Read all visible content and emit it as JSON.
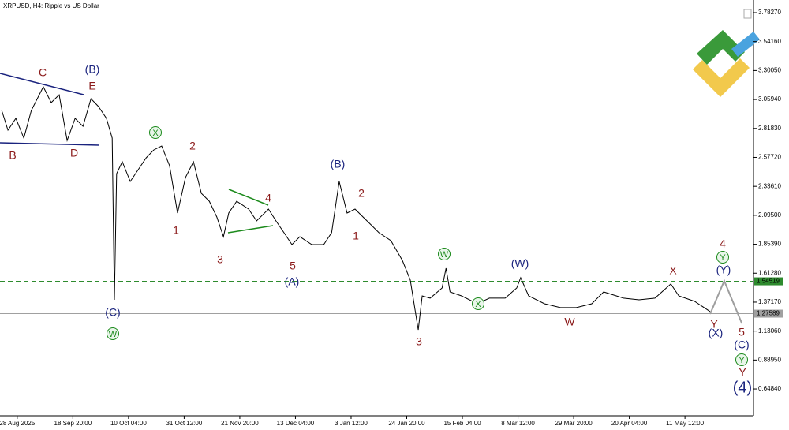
{
  "chart_data": {
    "type": "line",
    "title": "XRPUSD, H4:  Ripple vs US Dollar",
    "xlim": [
      0,
      1708
    ],
    "xticks": [
      {
        "value": 39,
        "label": "28 Aug 2025"
      },
      {
        "value": 165,
        "label": "18 Sep 20:00"
      },
      {
        "value": 291,
        "label": "10 Oct 04:00"
      },
      {
        "value": 417,
        "label": "31 Oct 12:00"
      },
      {
        "value": 543,
        "label": "21 Nov 20:00"
      },
      {
        "value": 669,
        "label": "13 Dec 04:00"
      },
      {
        "value": 795,
        "label": "3 Jan 12:00"
      },
      {
        "value": 921,
        "label": "24 Jan 20:00"
      },
      {
        "value": 1047,
        "label": "15 Feb 04:00"
      },
      {
        "value": 1173,
        "label": "8 Mar 12:00"
      },
      {
        "value": 1299,
        "label": "29 Mar 20:00"
      },
      {
        "value": 1425,
        "label": "20 Apr 04:00"
      },
      {
        "value": 1551,
        "label": "11 May 12:00"
      }
    ],
    "ylim": [
      0.4253,
      3.8747
    ],
    "yticks": [
      {
        "value": 3.7827,
        "label": "3.78270"
      },
      {
        "value": 3.5416,
        "label": "3.54160"
      },
      {
        "value": 3.3005,
        "label": "3.30050"
      },
      {
        "value": 3.0594,
        "label": "3.05940"
      },
      {
        "value": 2.8183,
        "label": "2.81830"
      },
      {
        "value": 2.5772,
        "label": "2.57720"
      },
      {
        "value": 2.3361,
        "label": "2.33610"
      },
      {
        "value": 2.095,
        "label": "2.09500"
      },
      {
        "value": 1.8539,
        "label": "1.85390"
      },
      {
        "value": 1.6128,
        "label": "1.61280"
      },
      {
        "value": 1.3717,
        "label": "1.37170"
      },
      {
        "value": 1.1306,
        "label": "1.13060"
      },
      {
        "value": 0.8895,
        "label": "0.88950"
      },
      {
        "value": 0.6484,
        "label": "0.64840"
      }
    ],
    "series": [
      {
        "color": "#000000",
        "x": [
          4,
          18,
          36,
          54,
          71,
          98,
          116,
          134,
          152,
          170,
          188,
          206,
          223,
          241,
          254,
          259,
          264,
          277,
          295,
          313,
          331,
          348,
          366,
          384,
          402,
          420,
          438,
          456,
          474,
          491,
          506,
          518,
          536,
          563,
          581,
          608,
          625,
          643,
          661,
          679,
          706,
          733,
          751,
          768,
          786,
          804,
          822,
          840,
          858,
          885,
          911,
          929,
          947,
          956,
          974,
          1001,
          1010,
          1019,
          1045,
          1081,
          1108,
          1144,
          1170,
          1179,
          1197,
          1233,
          1269,
          1305,
          1340,
          1367,
          1412,
          1447,
          1483,
          1519,
          1537,
          1573,
          1608
        ],
        "values": [
          2.968,
          2.804,
          2.902,
          2.738,
          2.968,
          3.165,
          3.034,
          3.099,
          2.718,
          2.902,
          2.836,
          3.066,
          3.001,
          2.902,
          2.738,
          1.391,
          2.442,
          2.541,
          2.377,
          2.475,
          2.574,
          2.639,
          2.672,
          2.508,
          2.114,
          2.41,
          2.541,
          2.278,
          2.212,
          2.081,
          1.917,
          2.114,
          2.212,
          2.147,
          2.048,
          2.147,
          2.048,
          1.95,
          1.851,
          1.917,
          1.851,
          1.851,
          1.95,
          2.377,
          2.114,
          2.147,
          2.081,
          2.016,
          1.95,
          1.884,
          1.72,
          1.556,
          1.141,
          1.424,
          1.405,
          1.49,
          1.654,
          1.457,
          1.424,
          1.358,
          1.405,
          1.405,
          1.49,
          1.575,
          1.424,
          1.358,
          1.326,
          1.326,
          1.358,
          1.457,
          1.405,
          1.391,
          1.405,
          1.523,
          1.424,
          1.378,
          1.293
        ]
      },
      {
        "color": "#9e9e9e",
        "x": [
          1608,
          1640,
          1680
        ],
        "values": [
          1.273,
          1.549,
          1.194
        ]
      }
    ],
    "price_lines": [
      {
        "value": 1.54519,
        "color": "#2e8b2e"
      },
      {
        "value": 1.27589,
        "color": "#a0a0a0"
      }
    ],
    "labels_red": [
      "C",
      "B",
      "D",
      "E",
      "1",
      "2",
      "3",
      "4",
      "5",
      "1",
      "2",
      "3",
      "W",
      "X",
      "Y",
      "4",
      "5",
      "Y"
    ],
    "labels_navy": [
      "(B)",
      "(C)",
      "(B)",
      "(A)",
      "(W)",
      "(Y)",
      "(X)",
      "(C)",
      "(4)"
    ],
    "labels_circled": [
      "X",
      "W",
      "W",
      "X",
      "Y",
      "Y"
    ]
  }
}
